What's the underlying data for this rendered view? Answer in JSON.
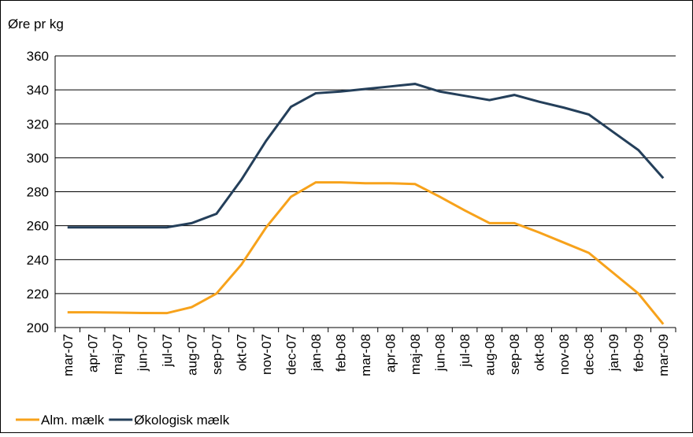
{
  "chart_data": {
    "type": "line",
    "y_label": "Øre pr kg",
    "categories": [
      "mar-07",
      "apr-07",
      "maj-07",
      "jun-07",
      "jul-07",
      "aug-07",
      "sep-07",
      "okt-07",
      "nov-07",
      "dec-07",
      "jan-08",
      "feb-08",
      "mar-08",
      "apr-08",
      "maj-08",
      "jun-08",
      "jul-08",
      "aug-08",
      "sep-08",
      "okt-08",
      "nov-08",
      "dec-08",
      "jan-09",
      "feb-09",
      "mar-09"
    ],
    "series": [
      {
        "name": "Alm. mælk",
        "color": "#f7a21b",
        "values": [
          209,
          209,
          208.8,
          208.6,
          208.5,
          212,
          220,
          237,
          259,
          277,
          285.5,
          285.5,
          285,
          285,
          284.5,
          277,
          269,
          261.5,
          261.5,
          256,
          250,
          244,
          232,
          220,
          202
        ]
      },
      {
        "name": "Økologisk mælk",
        "color": "#243f5a",
        "values": [
          259,
          259,
          259,
          259,
          259,
          261.5,
          267,
          287,
          310,
          330,
          338,
          339,
          340.5,
          342,
          343.5,
          339,
          336.5,
          334,
          337,
          333,
          329.5,
          325.5,
          315,
          304.5,
          288
        ]
      }
    ],
    "ylim": [
      200,
      360
    ],
    "yticks": [
      200,
      220,
      240,
      260,
      280,
      300,
      320,
      340,
      360
    ],
    "grid": true
  }
}
